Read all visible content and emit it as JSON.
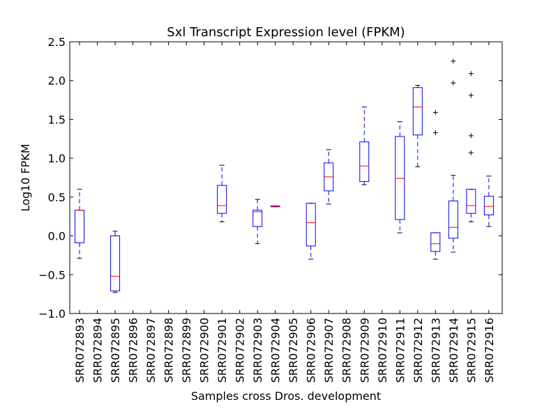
{
  "chart_data": {
    "type": "boxplot",
    "title": "Sxl Transcript Expression level (FPKM)",
    "xlabel": "Samples cross Dros. development",
    "ylabel": "Log10 FPKM",
    "ylim": [
      -1.0,
      2.5
    ],
    "yticks": [
      "2.5",
      "2.0",
      "1.5",
      "1.0",
      "0.5",
      "0.0",
      "−0.5",
      "−1.0"
    ],
    "ytick_values": [
      2.5,
      2.0,
      1.5,
      1.0,
      0.5,
      0.0,
      -0.5,
      -1.0
    ],
    "grid": false,
    "categories": [
      "SRR072893",
      "SRR072894",
      "SRR072895",
      "SRR072896",
      "SRR072897",
      "SRR072898",
      "SRR072899",
      "SRR072900",
      "SRR072901",
      "SRR072902",
      "SRR072903",
      "SRR072904",
      "SRR072905",
      "SRR072906",
      "SRR072907",
      "SRR072908",
      "SRR072909",
      "SRR072910",
      "SRR072911",
      "SRR072912",
      "SRR072913",
      "SRR072914",
      "SRR072915",
      "SRR072916"
    ],
    "boxes": [
      {
        "whislo": -0.29,
        "q1": -0.09,
        "med": 0.33,
        "q3": 0.33,
        "whishi": 0.6,
        "fliers": []
      },
      null,
      {
        "whislo": -0.73,
        "q1": -0.71,
        "med": -0.52,
        "q3": 0.0,
        "whishi": 0.06,
        "fliers": []
      },
      null,
      null,
      null,
      null,
      null,
      {
        "whislo": 0.18,
        "q1": 0.29,
        "med": 0.39,
        "q3": 0.65,
        "whishi": 0.91,
        "fliers": []
      },
      null,
      {
        "whislo": -0.1,
        "q1": 0.12,
        "med": 0.31,
        "q3": 0.33,
        "whishi": 0.47,
        "fliers": []
      },
      {
        "whislo": 0.375,
        "q1": 0.375,
        "med": 0.38,
        "q3": 0.385,
        "whishi": 0.385,
        "fliers": []
      },
      null,
      {
        "whislo": -0.3,
        "q1": -0.13,
        "med": 0.17,
        "q3": 0.42,
        "whishi": 0.42,
        "fliers": []
      },
      {
        "whislo": 0.41,
        "q1": 0.58,
        "med": 0.76,
        "q3": 0.94,
        "whishi": 1.11,
        "fliers": []
      },
      null,
      {
        "whislo": 0.66,
        "q1": 0.7,
        "med": 0.9,
        "q3": 1.21,
        "whishi": 1.66,
        "fliers": []
      },
      null,
      {
        "whislo": 0.04,
        "q1": 0.21,
        "med": 0.74,
        "q3": 1.28,
        "whishi": 1.47,
        "fliers": []
      },
      {
        "whislo": 0.89,
        "q1": 1.3,
        "med": 1.66,
        "q3": 1.91,
        "whishi": 1.94,
        "fliers": []
      },
      {
        "whislo": -0.3,
        "q1": -0.2,
        "med": -0.1,
        "q3": 0.04,
        "whishi": 0.04,
        "fliers": [
          1.59,
          1.33
        ]
      },
      {
        "whislo": -0.21,
        "q1": -0.03,
        "med": 0.11,
        "q3": 0.45,
        "whishi": 0.78,
        "fliers": [
          2.25,
          1.97
        ]
      },
      {
        "whislo": 0.18,
        "q1": 0.29,
        "med": 0.39,
        "q3": 0.6,
        "whishi": 0.6,
        "fliers": [
          2.09,
          1.81,
          1.29,
          1.07
        ]
      },
      {
        "whislo": 0.12,
        "q1": 0.27,
        "med": 0.38,
        "q3": 0.51,
        "whishi": 0.77,
        "fliers": []
      }
    ],
    "colors": {
      "box": "#0000ff",
      "median": "#ff0000",
      "whisker": "#0000ff",
      "flier": "#000000",
      "axes": "#000000"
    }
  }
}
